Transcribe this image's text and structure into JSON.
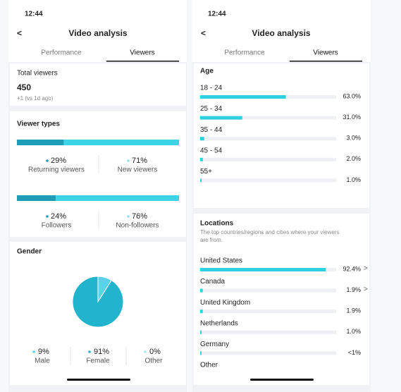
{
  "left": {
    "status_time": "12:44",
    "title": "Video analysis",
    "tabs": [
      "Performance",
      "Viewers"
    ],
    "total_viewers": {
      "label": "Total viewers",
      "value": 450,
      "change": "+1 (vs 1d ago)"
    },
    "viewer_types": {
      "label": "Viewer types",
      "groups": [
        {
          "items": [
            {
              "name": "Returning viewers",
              "value": 29,
              "value_label": "29%"
            },
            {
              "name": "New viewers",
              "value": 71,
              "value_label": "71%"
            }
          ]
        },
        {
          "items": [
            {
              "name": "Followers",
              "value": 24,
              "value_label": "24%"
            },
            {
              "name": "Non-followers",
              "value": 76,
              "value_label": "76%"
            }
          ]
        }
      ]
    },
    "gender": {
      "label": "Gender",
      "items": [
        {
          "name": "Male",
          "value": 9,
          "value_label": "9%",
          "color": "#5ad3e8"
        },
        {
          "name": "Female",
          "value": 91,
          "value_label": "91%",
          "color": "#22b3cd"
        },
        {
          "name": "Other",
          "value": 0,
          "value_label": "0%",
          "color": "#a8e8f0"
        }
      ]
    }
  },
  "right": {
    "status_time": "12:44",
    "title": "Video analysis",
    "tabs": [
      "Performance",
      "Viewers"
    ],
    "age": {
      "label": "Age",
      "rows": [
        {
          "name": "18 - 24",
          "value": 63,
          "value_label": "63.0%"
        },
        {
          "name": "25 - 34",
          "value": 31,
          "value_label": "31.0%"
        },
        {
          "name": "35 - 44",
          "value": 3,
          "value_label": "3.0%"
        },
        {
          "name": "45 - 54",
          "value": 2,
          "value_label": "2.0%"
        },
        {
          "name": "55+",
          "value": 1,
          "value_label": "1.0%"
        }
      ]
    },
    "locations": {
      "label": "Locations",
      "subtitle": [
        "The top countries/regions and cities where your viewers",
        "are from."
      ],
      "rows": [
        {
          "name": "United States",
          "value": 92.4,
          "value_label": "92.4%"
        },
        {
          "name": "Canada",
          "value": 1.9,
          "value_label": "1.9%"
        },
        {
          "name": "United Kingdom",
          "value": 1.9,
          "value_label": "1.9%"
        },
        {
          "name": "Netherlands",
          "value": 1,
          "value_label": "1.0%"
        },
        {
          "name": "Germany",
          "value": 0.5,
          "value_label": "<1%"
        },
        {
          "name": "Other"
        }
      ]
    }
  }
}
